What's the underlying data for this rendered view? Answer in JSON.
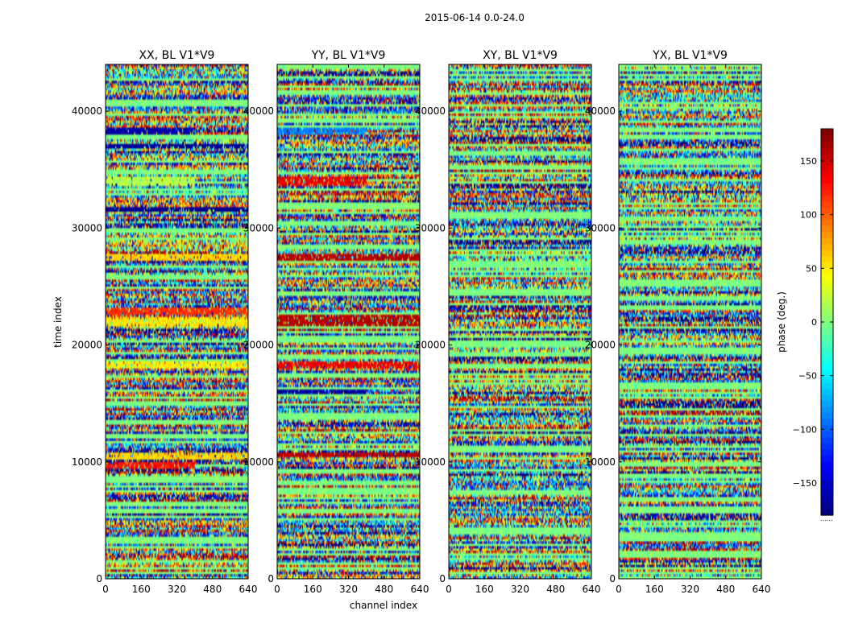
{
  "figure": {
    "suptitle": "2015-06-14 0.0-24.0",
    "xlabel": "channel index",
    "ylabel": "time index"
  },
  "colorbar": {
    "label": "phase (deg.)",
    "ticks": [
      150,
      100,
      50,
      0,
      -50,
      -100,
      -150
    ],
    "tick_labels": [
      "150",
      "100",
      "50",
      "0",
      "−50",
      "−100",
      "−150"
    ],
    "range": [
      -180,
      180
    ],
    "colormap": "jet",
    "under_text": "......"
  },
  "chart_data": [
    {
      "type": "heatmap",
      "title": "XX, BL V1*V9",
      "xlim": [
        0,
        640
      ],
      "ylim": [
        0,
        44000
      ],
      "xticks": [
        0,
        160,
        320,
        480,
        640
      ],
      "yticks": [
        0,
        10000,
        20000,
        30000,
        40000
      ],
      "value_range": [
        -180,
        180
      ],
      "seed": 11,
      "features": [
        {
          "t0": 38000,
          "t1": 38600,
          "phase": -165,
          "c0": 0,
          "c1": 400
        },
        {
          "t0": 36800,
          "t1": 37200,
          "phase": -170,
          "c0": 0,
          "c1": 640
        },
        {
          "t0": 33600,
          "t1": 34400,
          "phase": 20,
          "c0": 0,
          "c1": 400
        },
        {
          "t0": 31400,
          "t1": 31700,
          "phase": -175,
          "c0": 0,
          "c1": 640
        },
        {
          "t0": 27200,
          "t1": 27700,
          "phase": 60,
          "c0": 0,
          "c1": 640
        },
        {
          "t0": 22600,
          "t1": 23200,
          "phase": 120,
          "c0": 0,
          "c1": 640
        },
        {
          "t0": 21600,
          "t1": 22300,
          "phase": 55,
          "c0": 0,
          "c1": 640
        },
        {
          "t0": 18000,
          "t1": 18600,
          "phase": 50,
          "c0": 0,
          "c1": 640
        },
        {
          "t0": 10200,
          "t1": 10700,
          "phase": 60,
          "c0": 0,
          "c1": 640
        },
        {
          "t0": 9500,
          "t1": 9900,
          "phase": 130,
          "c0": 0,
          "c1": 400
        }
      ]
    },
    {
      "type": "heatmap",
      "title": "YY, BL V1*V9",
      "xlim": [
        0,
        640
      ],
      "ylim": [
        0,
        44000
      ],
      "xticks": [
        0,
        160,
        320,
        480,
        640
      ],
      "yticks": [
        0,
        10000,
        20000,
        30000,
        40000
      ],
      "value_range": [
        -180,
        180
      ],
      "seed": 23,
      "features": [
        {
          "t0": 38000,
          "t1": 38600,
          "phase": -90,
          "c0": 0,
          "c1": 400
        },
        {
          "t0": 33600,
          "t1": 34400,
          "phase": 140,
          "c0": 0,
          "c1": 400
        },
        {
          "t0": 27200,
          "t1": 27700,
          "phase": 160,
          "c0": 0,
          "c1": 640
        },
        {
          "t0": 21600,
          "t1": 22600,
          "phase": 160,
          "c0": 0,
          "c1": 640
        },
        {
          "t0": 18000,
          "t1": 18500,
          "phase": 140,
          "c0": 0,
          "c1": 640
        },
        {
          "t0": 15800,
          "t1": 16200,
          "phase": -170,
          "c0": 0,
          "c1": 400
        },
        {
          "t0": 10400,
          "t1": 10800,
          "phase": 160,
          "c0": 0,
          "c1": 640
        }
      ]
    },
    {
      "type": "heatmap",
      "title": "XY, BL V1*V9",
      "xlim": [
        0,
        640
      ],
      "ylim": [
        0,
        44000
      ],
      "xticks": [
        0,
        160,
        320,
        480,
        640
      ],
      "yticks": [
        0,
        10000,
        20000,
        30000,
        40000
      ],
      "value_range": [
        -180,
        180
      ],
      "seed": 37,
      "features": []
    },
    {
      "type": "heatmap",
      "title": "YX, BL V1*V9",
      "xlim": [
        0,
        640
      ],
      "ylim": [
        0,
        44000
      ],
      "xticks": [
        0,
        160,
        320,
        480,
        640
      ],
      "yticks": [
        0,
        10000,
        20000,
        30000,
        40000
      ],
      "value_range": [
        -180,
        180
      ],
      "seed": 53,
      "features": []
    }
  ]
}
